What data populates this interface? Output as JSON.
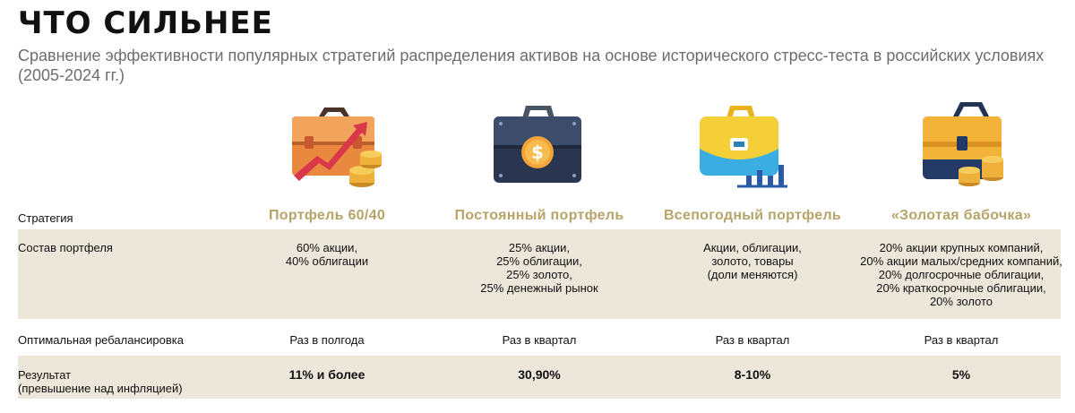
{
  "header": {
    "title": "ЧТО СИЛЬНЕЕ",
    "subtitle": "Сравнение эффективности популярных стратегий распределения активов на основе исторического стресс-теста в российских условиях (2005-2024 гг.)"
  },
  "icons": [
    "briefcase-growth-icon",
    "briefcase-dollar-icon",
    "briefcase-chart-icon",
    "briefcase-coins-icon"
  ],
  "colors": {
    "accent": "#b7a46a",
    "band": "#ede6da"
  },
  "table": {
    "rows": {
      "strategy": {
        "label": "Стратегия",
        "values": [
          "Портфель 60/40",
          "Постоянный портфель",
          "Всепогодный портфель",
          "«Золотая бабочка»"
        ]
      },
      "composition": {
        "label": "Состав портфеля",
        "values": [
          "60% акции,\n40% облигации",
          "25% акции,\n25% облигации,\n25% золото,\n25% денежный рынок",
          "Акции, облигации,\nзолото, товары\n(доли меняются)",
          "20% акции крупных компаний,\n20% акции малых/средних компаний,\n20% долгосрочные облигации,\n20% краткосрочные облигации,\n20% золото"
        ]
      },
      "rebalancing": {
        "label": "Оптимальная ребалансировка",
        "values": [
          "Раз в полгода",
          "Раз в квартал",
          "Раз в квартал",
          "Раз в квартал"
        ]
      },
      "result": {
        "label": "Результат\n(превышение над инфляцией)",
        "values": [
          "11% и более",
          "30,90%",
          "8-10%",
          "5%"
        ]
      }
    }
  }
}
